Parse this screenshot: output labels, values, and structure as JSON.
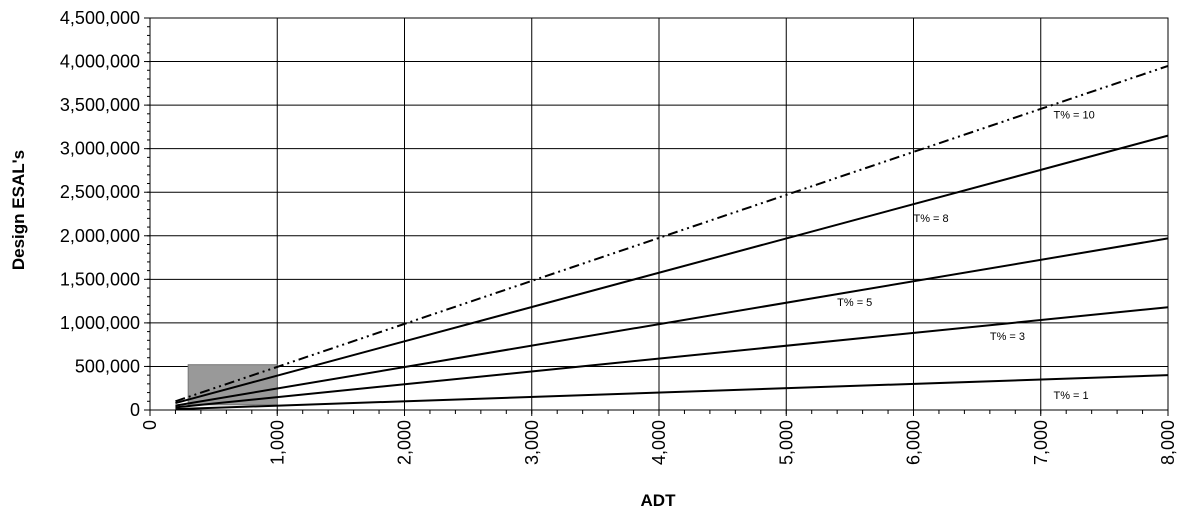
{
  "chart_data": {
    "type": "line",
    "xlabel": "ADT",
    "ylabel": "Design ESAL's",
    "xlim": [
      0,
      8000
    ],
    "ylim": [
      0,
      4500000
    ],
    "x_ticks": [
      "0",
      "1,000",
      "2,000",
      "3,000",
      "4,000",
      "5,000",
      "6,000",
      "7,000",
      "8,000"
    ],
    "y_ticks": [
      "0",
      "500,000",
      "1,000,000",
      "1,500,000",
      "2,000,000",
      "2,500,000",
      "3,000,000",
      "3,500,000",
      "4,000,000",
      "4,500,000"
    ],
    "grid": true,
    "series": [
      {
        "name": "T% = 1",
        "style": "solid",
        "color": "#000000",
        "x": [
          200,
          8000
        ],
        "y": [
          10000,
          400000
        ]
      },
      {
        "name": "T% = 3",
        "style": "solid",
        "color": "#000000",
        "x": [
          200,
          8000
        ],
        "y": [
          30000,
          1180000
        ]
      },
      {
        "name": "T% = 5",
        "style": "solid",
        "color": "#000000",
        "x": [
          200,
          8000
        ],
        "y": [
          50000,
          1970000
        ]
      },
      {
        "name": "T% = 8",
        "style": "solid",
        "color": "#000000",
        "x": [
          200,
          8000
        ],
        "y": [
          80000,
          3150000
        ]
      },
      {
        "name": "T% = 10",
        "style": "dash-dot-dot",
        "color": "#000000",
        "x": [
          200,
          8000
        ],
        "y": [
          100000,
          3950000
        ]
      }
    ],
    "highlight_box": {
      "x": [
        300,
        1000
      ],
      "y": [
        60000,
        520000
      ],
      "color": "#999999"
    }
  }
}
